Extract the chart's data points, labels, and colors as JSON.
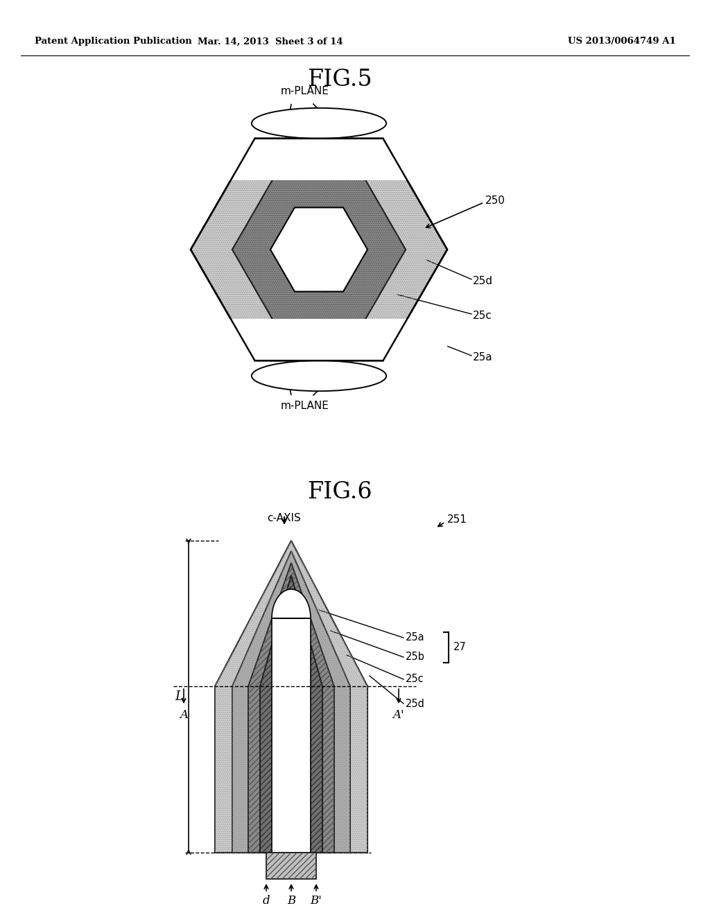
{
  "header_left": "Patent Application Publication",
  "header_mid": "Mar. 14, 2013  Sheet 3 of 14",
  "header_right": "US 2013/0064749 A1",
  "fig5_title": "FIG.5",
  "fig6_title": "FIG.6",
  "bg_color": "#ffffff",
  "text_color": "#000000"
}
